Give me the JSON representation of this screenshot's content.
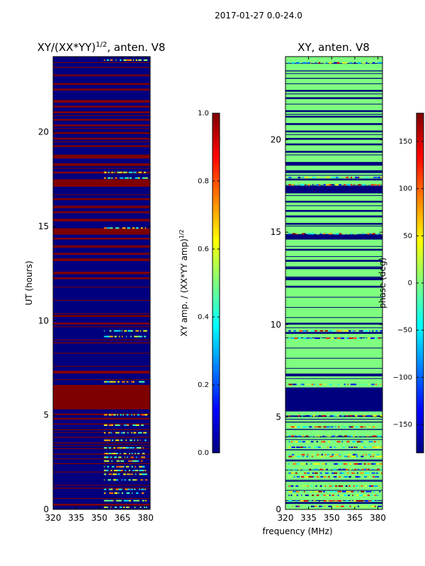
{
  "figure": {
    "suptitle": "2017-01-27 0.0-24.0",
    "shared_xlabel": "frequency (MHz)"
  },
  "colors": {
    "jet_stops": [
      "#00007f",
      "#0000ff",
      "#007fff",
      "#00ffff",
      "#7fff7f",
      "#ffff00",
      "#ff7f00",
      "#ff0000",
      "#7f0000"
    ],
    "background": "#ffffff"
  },
  "chart_data": [
    {
      "type": "heatmap",
      "title": "XY/(XX*YY)^{1/2}, anten. V8",
      "title_main": "XY/(XX*YY)",
      "title_sup": "1/2",
      "title_tail": ", anten. V8",
      "xlabel": "",
      "ylabel": "UT (hours)",
      "xlim": [
        320,
        383
      ],
      "ylim": [
        0,
        24
      ],
      "xticks": [
        320,
        335,
        350,
        365,
        380
      ],
      "yticks": [
        0,
        5,
        10,
        15,
        20
      ],
      "background_value": 0.0,
      "bands_full": [
        [
          0.2,
          0.3,
          1.0
        ],
        [
          1.1,
          1.15,
          1.0
        ],
        [
          2.4,
          2.45,
          1.0
        ],
        [
          2.9,
          2.95,
          1.0
        ],
        [
          3.2,
          3.25,
          1.0
        ],
        [
          3.5,
          3.55,
          1.0
        ],
        [
          3.8,
          3.85,
          1.0
        ],
        [
          4.2,
          4.25,
          1.0
        ],
        [
          4.5,
          4.55,
          1.0
        ],
        [
          4.8,
          4.85,
          1.0
        ],
        [
          5.0,
          5.08,
          1.0
        ],
        [
          5.3,
          6.6,
          1.0
        ],
        [
          7.2,
          7.35,
          1.0
        ],
        [
          8.8,
          8.85,
          1.0
        ],
        [
          9.8,
          9.9,
          1.0
        ],
        [
          10.2,
          10.3,
          1.0
        ],
        [
          12.2,
          12.3,
          1.0
        ],
        [
          12.5,
          12.6,
          1.0
        ],
        [
          13.2,
          13.3,
          1.0
        ],
        [
          13.5,
          13.6,
          1.0
        ],
        [
          13.9,
          14.0,
          1.0
        ],
        [
          14.3,
          14.4,
          1.0
        ],
        [
          14.6,
          14.9,
          1.0
        ],
        [
          15.3,
          15.4,
          1.0
        ],
        [
          15.7,
          15.8,
          1.0
        ],
        [
          16.0,
          16.1,
          1.0
        ],
        [
          16.4,
          16.5,
          1.0
        ],
        [
          17.1,
          17.5,
          1.0
        ],
        [
          17.8,
          17.9,
          1.0
        ],
        [
          18.2,
          18.35,
          1.0
        ],
        [
          18.6,
          18.8,
          1.0
        ],
        [
          19.2,
          19.3,
          1.0
        ],
        [
          19.6,
          19.7,
          1.0
        ],
        [
          19.9,
          20.0,
          1.0
        ],
        [
          20.3,
          20.4,
          1.0
        ],
        [
          20.6,
          20.7,
          1.0
        ],
        [
          21.0,
          21.1,
          1.0
        ],
        [
          21.3,
          21.4,
          1.0
        ],
        [
          21.6,
          21.7,
          1.0
        ],
        [
          22.2,
          22.3,
          1.0
        ],
        [
          22.5,
          22.6,
          1.0
        ],
        [
          23.0,
          23.05,
          1.0
        ],
        [
          23.4,
          23.45,
          1.0
        ]
      ],
      "speckle_rows": [
        0.15,
        0.5,
        0.9,
        1.1,
        1.6,
        1.9,
        2.1,
        2.3,
        2.6,
        2.8,
        3.0,
        3.3,
        3.7,
        4.1,
        4.5,
        5.05,
        6.8,
        9.2,
        9.5,
        14.95,
        17.6,
        17.9,
        23.85
      ],
      "speckle_xrange": [
        353,
        380
      ],
      "colorbar": {
        "label": "XY amp. / (XX*YY amp)^{1/2}",
        "label_main": "XY amp. / (XX*YY amp)",
        "label_sup": "1/2",
        "range": [
          0.0,
          1.0
        ],
        "ticks": [
          0.0,
          0.2,
          0.4,
          0.6,
          0.8,
          1.0
        ],
        "tick_labels": [
          "0.0",
          "0.2",
          "0.4",
          "0.6",
          "0.8",
          "1.0"
        ]
      }
    },
    {
      "type": "heatmap",
      "title": "XY, anten. V8",
      "xlabel": "frequency (MHz)",
      "ylabel": "",
      "xlim": [
        320,
        383
      ],
      "ylim": [
        0,
        24.5
      ],
      "xticks": [
        320,
        335,
        350,
        365,
        380
      ],
      "yticks": [
        0,
        5,
        10,
        15,
        20
      ],
      "background_value": 0.0,
      "bands_full": [
        [
          0.3,
          0.4,
          -180
        ],
        [
          1.5,
          1.55,
          -180
        ],
        [
          2.6,
          2.65,
          -180
        ],
        [
          3.2,
          3.25,
          -180
        ],
        [
          3.9,
          3.95,
          -180
        ],
        [
          4.3,
          4.35,
          -180
        ],
        [
          4.7,
          4.75,
          -180
        ],
        [
          5.0,
          5.08,
          -180
        ],
        [
          5.3,
          6.6,
          -180
        ],
        [
          7.2,
          7.35,
          -180
        ],
        [
          9.5,
          9.6,
          -180
        ],
        [
          10.0,
          10.1,
          -180
        ],
        [
          12.0,
          12.1,
          -180
        ],
        [
          12.4,
          12.55,
          -180
        ],
        [
          13.0,
          13.1,
          -180
        ],
        [
          13.4,
          13.5,
          -180
        ],
        [
          14.0,
          14.1,
          -180
        ],
        [
          14.6,
          14.9,
          -180
        ],
        [
          15.4,
          15.5,
          -180
        ],
        [
          15.8,
          15.9,
          -180
        ],
        [
          16.1,
          16.2,
          -180
        ],
        [
          16.6,
          16.7,
          -180
        ],
        [
          17.1,
          17.5,
          -180
        ],
        [
          17.8,
          17.9,
          -180
        ],
        [
          18.2,
          18.35,
          -180
        ],
        [
          18.6,
          18.8,
          -180
        ],
        [
          19.3,
          19.4,
          -180
        ],
        [
          19.7,
          19.8,
          -180
        ],
        [
          20.0,
          20.1,
          -180
        ],
        [
          20.4,
          20.5,
          -180
        ],
        [
          20.8,
          20.9,
          -180
        ],
        [
          21.2,
          21.3,
          -180
        ],
        [
          21.5,
          21.6,
          -180
        ],
        [
          22.2,
          22.3,
          -180
        ],
        [
          22.6,
          22.7,
          -180
        ],
        [
          23.3,
          23.35,
          -180
        ],
        [
          23.7,
          23.75,
          -180
        ]
      ],
      "speckle_rows": [
        0.2,
        0.5,
        0.8,
        1.0,
        1.3,
        1.8,
        2.0,
        2.2,
        2.5,
        2.9,
        3.0,
        3.4,
        3.7,
        4.0,
        4.5,
        5.1,
        6.8,
        9.3,
        9.7,
        14.95,
        17.6,
        18.0,
        24.2
      ],
      "speckle_xrange": [
        322,
        382
      ],
      "colorbar": {
        "label": "phase (deg)",
        "range": [
          -180,
          180
        ],
        "ticks": [
          -150,
          -100,
          -50,
          0,
          50,
          100,
          150
        ],
        "tick_labels": [
          "−150",
          "−100",
          "−50",
          "0",
          "50",
          "100",
          "150"
        ]
      }
    }
  ]
}
